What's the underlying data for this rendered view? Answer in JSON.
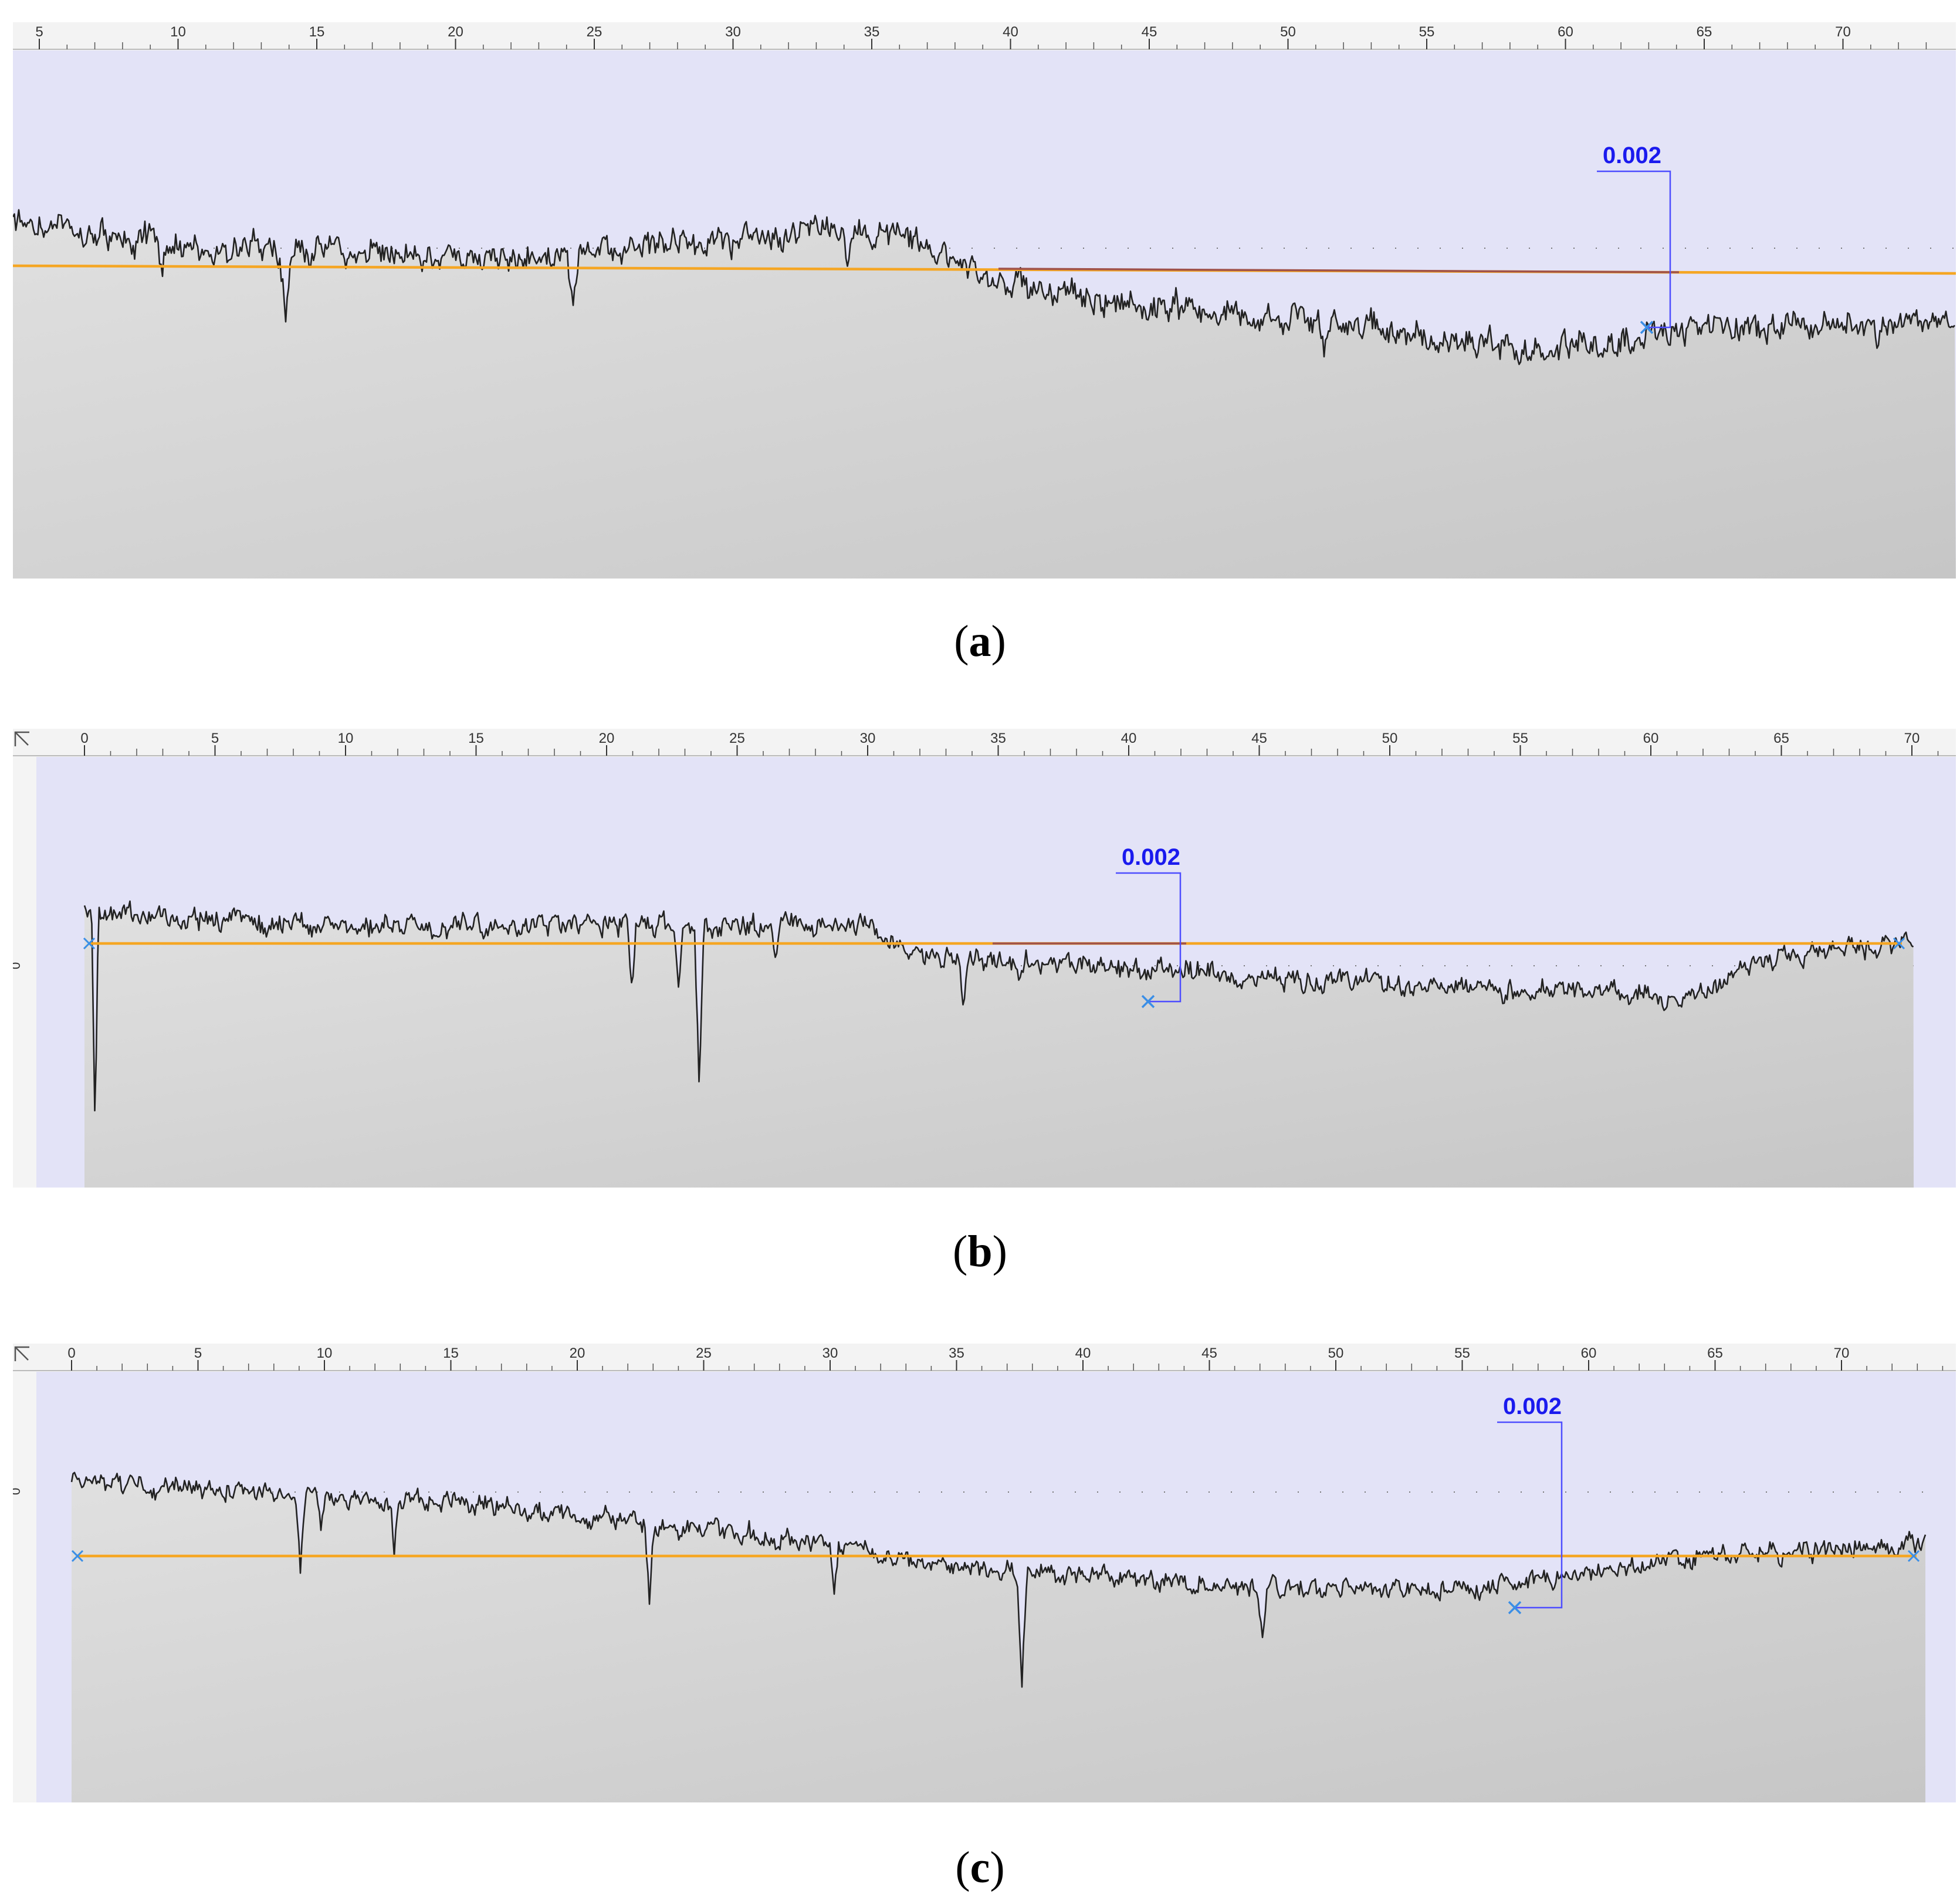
{
  "colors": {
    "ruler_bg": "#f3f3f3",
    "plot_bg": "#e3e3f7",
    "fill_light": "#e0e0e0",
    "fill_dark": "#c6c6c6",
    "profile_line": "#222222",
    "reference_line": "#f5a623",
    "reference_line_dark": "#a0524a",
    "measure_line": "#4d4dff",
    "measure_label": "#1a1aee",
    "marker": "#3a8ee6"
  },
  "panels": [
    {
      "id": "a",
      "caption_letter": "a",
      "ruler_labels": [
        "5",
        "10",
        "15",
        "20",
        "25",
        "30",
        "35",
        "40",
        "45",
        "50",
        "55",
        "60",
        "65",
        "70"
      ],
      "y_axis_label": "",
      "measure_label": "0.002"
    },
    {
      "id": "b",
      "caption_letter": "b",
      "ruler_labels": [
        "0",
        "5",
        "10",
        "15",
        "20",
        "25",
        "30",
        "35",
        "40",
        "45",
        "50",
        "55",
        "60",
        "65",
        "70"
      ],
      "y_axis_label": "0",
      "measure_label": "0.002"
    },
    {
      "id": "c",
      "caption_letter": "c",
      "ruler_labels": [
        "0",
        "5",
        "10",
        "15",
        "20",
        "25",
        "30",
        "35",
        "40",
        "45",
        "50",
        "55",
        "60",
        "65",
        "70"
      ],
      "y_axis_label": "0",
      "measure_label": "0.002"
    }
  ]
}
